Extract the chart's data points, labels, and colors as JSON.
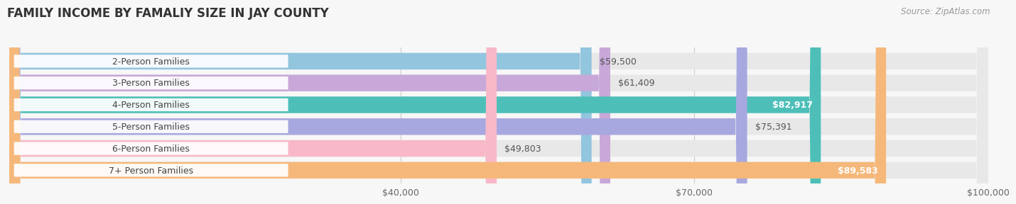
{
  "title": "FAMILY INCOME BY FAMALIY SIZE IN JAY COUNTY",
  "source": "Source: ZipAtlas.com",
  "categories": [
    "2-Person Families",
    "3-Person Families",
    "4-Person Families",
    "5-Person Families",
    "6-Person Families",
    "7+ Person Families"
  ],
  "values": [
    59500,
    61409,
    82917,
    75391,
    49803,
    89583
  ],
  "bar_colors": [
    "#92c5de",
    "#c8a8d8",
    "#4dbfb8",
    "#a8a8e0",
    "#f9b8c8",
    "#f5b87a"
  ],
  "value_labels": [
    "$59,500",
    "$61,409",
    "$82,917",
    "$75,391",
    "$49,803",
    "$89,583"
  ],
  "value_label_inside": [
    false,
    false,
    true,
    false,
    false,
    true
  ],
  "xmin": 0,
  "xmax": 100000,
  "xticks": [
    40000,
    70000,
    100000
  ],
  "xtick_labels": [
    "$40,000",
    "$70,000",
    "$100,000"
  ],
  "background_color": "#f7f7f7",
  "bar_bg_color": "#e8e8e8",
  "title_fontsize": 12,
  "source_fontsize": 8.5,
  "label_fontsize": 9,
  "value_fontsize": 9
}
